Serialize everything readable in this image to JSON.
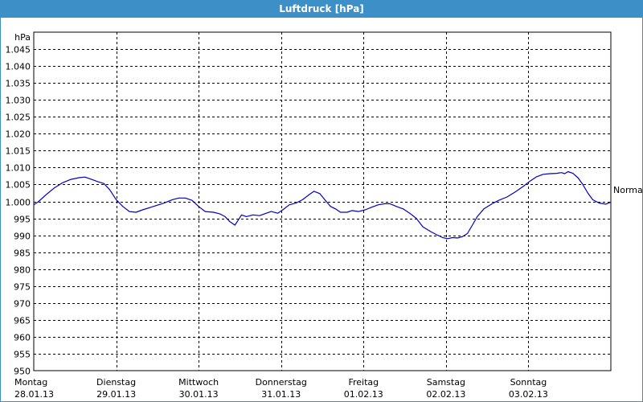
{
  "window": {
    "title": "Luftdruck [hPa]"
  },
  "chart_data": {
    "type": "line",
    "title": "Luftdruck [hPa]",
    "ylabel": "hPa",
    "ylim": [
      950,
      1050
    ],
    "yticks": [
      950,
      955,
      960,
      965,
      970,
      975,
      980,
      985,
      990,
      995,
      1000,
      1005,
      1010,
      1015,
      1020,
      1025,
      1030,
      1035,
      1040,
      1045
    ],
    "ytick_labels": [
      "950",
      "955",
      "960",
      "965",
      "970",
      "975",
      "980",
      "985",
      "990",
      "995",
      "1.000",
      "1.005",
      "1.010",
      "1.015",
      "1.020",
      "1.025",
      "1.030",
      "1.035",
      "1.040",
      "1.045"
    ],
    "xlim_days": [
      0,
      7
    ],
    "x_categories": [
      {
        "day": "Montag",
        "date": "28.01.13"
      },
      {
        "day": "Dienstag",
        "date": "29.01.13"
      },
      {
        "day": "Mittwoch",
        "date": "30.01.13"
      },
      {
        "day": "Donnerstag",
        "date": "31.01.13"
      },
      {
        "day": "Freitag",
        "date": "01.02.13"
      },
      {
        "day": "Samstag",
        "date": "02.02.13"
      },
      {
        "day": "Sonntag",
        "date": "03.02.13"
      }
    ],
    "grid": true,
    "reference_line": {
      "label": "Normal",
      "value": 1003.5
    },
    "series": [
      {
        "color": "#0000c0",
        "points": [
          [
            0.0,
            999.0
          ],
          [
            0.06,
            1000.0
          ],
          [
            0.15,
            1002.0
          ],
          [
            0.25,
            1004.0
          ],
          [
            0.35,
            1005.5
          ],
          [
            0.45,
            1006.5
          ],
          [
            0.55,
            1007.0
          ],
          [
            0.62,
            1007.2
          ],
          [
            0.7,
            1006.5
          ],
          [
            0.78,
            1005.8
          ],
          [
            0.85,
            1005.3
          ],
          [
            0.92,
            1003.5
          ],
          [
            1.0,
            1000.5
          ],
          [
            1.08,
            998.5
          ],
          [
            1.16,
            997.0
          ],
          [
            1.24,
            996.8
          ],
          [
            1.32,
            997.5
          ],
          [
            1.45,
            998.5
          ],
          [
            1.58,
            999.5
          ],
          [
            1.68,
            1000.5
          ],
          [
            1.76,
            1001.0
          ],
          [
            1.84,
            1001.0
          ],
          [
            1.92,
            1000.3
          ],
          [
            2.0,
            998.5
          ],
          [
            2.08,
            997.0
          ],
          [
            2.18,
            996.8
          ],
          [
            2.26,
            996.3
          ],
          [
            2.32,
            995.5
          ],
          [
            2.38,
            994.0
          ],
          [
            2.44,
            993.0
          ],
          [
            2.48,
            994.5
          ],
          [
            2.52,
            996.0
          ],
          [
            2.58,
            995.5
          ],
          [
            2.66,
            996.0
          ],
          [
            2.74,
            995.8
          ],
          [
            2.82,
            996.5
          ],
          [
            2.88,
            997.0
          ],
          [
            2.96,
            996.5
          ],
          [
            3.02,
            997.5
          ],
          [
            3.1,
            999.0
          ],
          [
            3.18,
            999.5
          ],
          [
            3.26,
            1000.5
          ],
          [
            3.34,
            1002.0
          ],
          [
            3.4,
            1003.0
          ],
          [
            3.47,
            1002.3
          ],
          [
            3.53,
            1000.5
          ],
          [
            3.6,
            998.5
          ],
          [
            3.66,
            997.8
          ],
          [
            3.72,
            996.8
          ],
          [
            3.8,
            996.8
          ],
          [
            3.86,
            997.3
          ],
          [
            3.94,
            997.0
          ],
          [
            4.02,
            997.5
          ],
          [
            4.1,
            998.3
          ],
          [
            4.18,
            999.0
          ],
          [
            4.26,
            999.3
          ],
          [
            4.32,
            999.3
          ],
          [
            4.4,
            998.5
          ],
          [
            4.48,
            997.8
          ],
          [
            4.56,
            996.5
          ],
          [
            4.64,
            995.0
          ],
          [
            4.72,
            992.5
          ],
          [
            4.82,
            991.0
          ],
          [
            4.9,
            990.0
          ],
          [
            4.96,
            989.3
          ],
          [
            5.02,
            989.0
          ],
          [
            5.08,
            989.3
          ],
          [
            5.14,
            989.2
          ],
          [
            5.2,
            989.6
          ],
          [
            5.26,
            990.5
          ],
          [
            5.32,
            993.0
          ],
          [
            5.38,
            995.5
          ],
          [
            5.46,
            997.8
          ],
          [
            5.56,
            999.3
          ],
          [
            5.64,
            1000.3
          ],
          [
            5.74,
            1001.3
          ],
          [
            5.84,
            1002.8
          ],
          [
            5.94,
            1004.5
          ],
          [
            6.02,
            1006.0
          ],
          [
            6.1,
            1007.3
          ],
          [
            6.18,
            1008.0
          ],
          [
            6.26,
            1008.2
          ],
          [
            6.34,
            1008.3
          ],
          [
            6.4,
            1008.5
          ],
          [
            6.44,
            1008.2
          ],
          [
            6.48,
            1008.8
          ],
          [
            6.54,
            1008.3
          ],
          [
            6.6,
            1007.0
          ],
          [
            6.66,
            1005.0
          ],
          [
            6.72,
            1002.5
          ],
          [
            6.78,
            1000.5
          ],
          [
            6.86,
            999.5
          ],
          [
            6.94,
            999.2
          ],
          [
            7.0,
            999.8
          ]
        ]
      }
    ]
  }
}
